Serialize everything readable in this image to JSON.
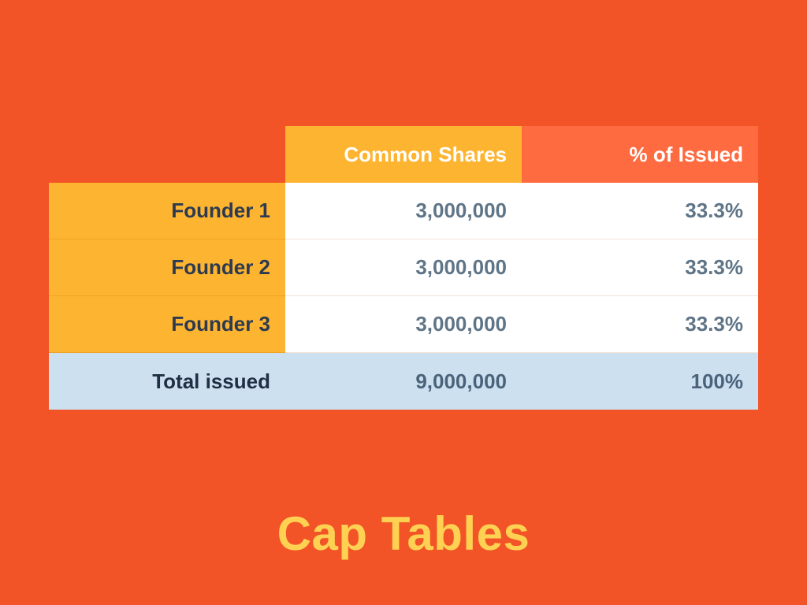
{
  "slide": {
    "title": "Cap Tables"
  },
  "table": {
    "headers": [
      "",
      "Common Shares",
      "% of Issued"
    ],
    "rows": [
      {
        "name": "Founder 1",
        "shares": "3,000,000",
        "percent": "33.3%"
      },
      {
        "name": "Founder 2",
        "shares": "3,000,000",
        "percent": "33.3%"
      },
      {
        "name": "Founder 3",
        "shares": "3,000,000",
        "percent": "33.3%"
      }
    ],
    "total": {
      "name": "Total issued",
      "shares": "9,000,000",
      "percent": "100%"
    }
  },
  "colors": {
    "background": "#f25427",
    "header_shares": "#fdb430",
    "header_percent": "#ff6b40",
    "founder_column": "#fdb430",
    "total_row": "#cce0f0",
    "title": "#ffd152"
  }
}
